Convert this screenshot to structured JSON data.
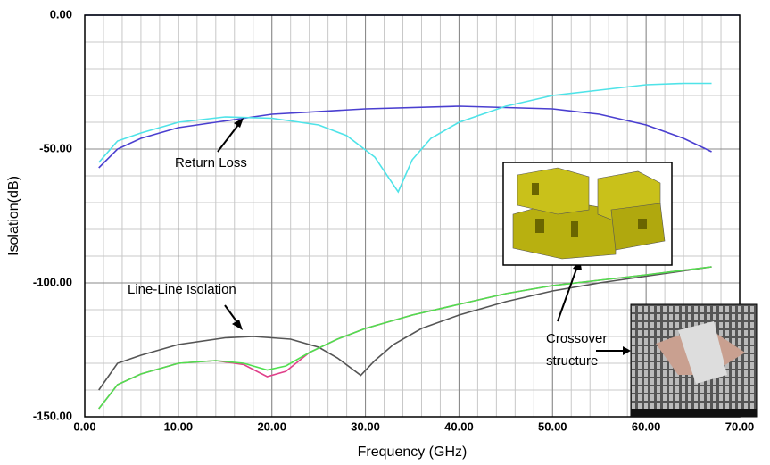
{
  "chart_data": {
    "type": "line",
    "xlabel": "Frequency (GHz)",
    "ylabel": "Isolation(dB)",
    "xlim": [
      0,
      70
    ],
    "ylim": [
      -150,
      0
    ],
    "xticks": [
      {
        "value": 0,
        "label": "0.00"
      },
      {
        "value": 10,
        "label": "10.00"
      },
      {
        "value": 20,
        "label": "20.00"
      },
      {
        "value": 30,
        "label": "30.00"
      },
      {
        "value": 40,
        "label": "40.00"
      },
      {
        "value": 50,
        "label": "50.00"
      },
      {
        "value": 60,
        "label": "60.00"
      },
      {
        "value": 70,
        "label": "70.00"
      }
    ],
    "yticks": [
      {
        "value": 0,
        "label": "0.00"
      },
      {
        "value": -50,
        "label": "-50.00"
      },
      {
        "value": -100,
        "label": "-100.00"
      },
      {
        "value": -150,
        "label": "-150.00"
      }
    ],
    "grid": true,
    "x_minor_step": 2,
    "y_minor_step": 10,
    "series": [
      {
        "color": "#4a5fd6",
        "x": [
          0,
          70
        ],
        "values": [
          0,
          0
        ]
      },
      {
        "color": "#4a3fd0",
        "x": [
          1.5,
          3.5,
          6,
          10,
          15,
          20,
          30,
          40,
          50,
          55,
          60,
          64,
          67
        ],
        "values": [
          -57,
          -50,
          -46,
          -42,
          -39.5,
          -37,
          -35,
          -34,
          -35,
          -37,
          -41,
          -46,
          -51
        ]
      },
      {
        "color": "#4fe3e8",
        "x": [
          1.5,
          3.5,
          6,
          10,
          15,
          20,
          25,
          28,
          31,
          33.5,
          35,
          37,
          40,
          45,
          50,
          55,
          60,
          64,
          67
        ],
        "values": [
          -55,
          -47,
          -44,
          -40,
          -38,
          -38.5,
          -41,
          -45,
          -53,
          -66,
          -54,
          -46,
          -40,
          -34,
          -30,
          -28,
          -26,
          -25.5,
          -25.5
        ]
      },
      {
        "color": "#555555",
        "x": [
          1.5,
          3.5,
          6,
          10,
          15,
          18,
          22,
          25,
          27,
          29.5,
          31,
          33,
          36,
          40,
          45,
          50,
          55,
          60,
          67
        ],
        "values": [
          -140,
          -130,
          -127,
          -123,
          -120.5,
          -120,
          -121,
          -124,
          -128,
          -134.5,
          -129,
          -123,
          -117,
          -112,
          -107,
          -103,
          -100,
          -97.5,
          -94
        ]
      },
      {
        "color": "#e0408a",
        "x": [
          1.5,
          3.5,
          6,
          10,
          14,
          17,
          19.5,
          21.5,
          24,
          27,
          30,
          35,
          40,
          45,
          50,
          55,
          60,
          67
        ],
        "values": [
          -147,
          -138,
          -134,
          -130,
          -129,
          -130.5,
          -135,
          -133,
          -126,
          -121,
          -117,
          -112,
          -108,
          -104,
          -101,
          -99,
          -97,
          -94
        ]
      },
      {
        "color": "#4fe04f",
        "x": [
          1.5,
          3.5,
          6,
          10,
          14,
          17,
          19.5,
          21.5,
          24,
          27,
          30,
          35,
          40,
          45,
          50,
          55,
          60,
          67
        ],
        "values": [
          -147,
          -138,
          -134,
          -130,
          -129,
          -130,
          -132.5,
          -131,
          -126,
          -121,
          -117,
          -112,
          -108,
          -104,
          -101,
          -99,
          -97,
          -94
        ]
      }
    ],
    "annotations": [
      "Return Loss",
      "Line-Line Isolation",
      "Crossover",
      "structure"
    ]
  }
}
